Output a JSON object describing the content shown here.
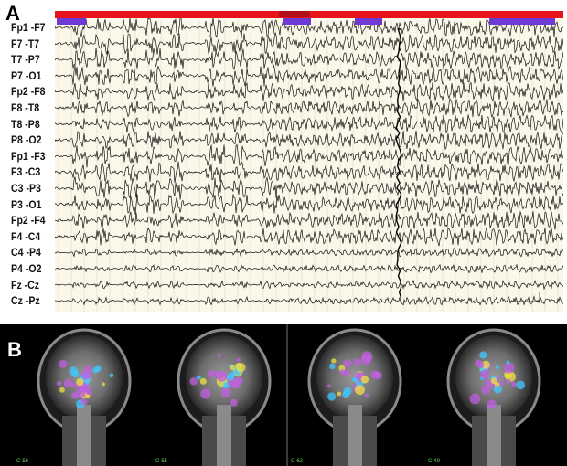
{
  "panel_a": {
    "label": "A",
    "channels": [
      "Fp1 -F7",
      "F7 -T7",
      "T7 -P7",
      "P7 -O1",
      "Fp2 -F8",
      "F8 -T8",
      "T8 -P8",
      "P8 -O2",
      "Fp1 -F3",
      "F3 -C3",
      "C3 -P3",
      "P3 -O1",
      "Fp2 -F4",
      "F4 -C4",
      "C4 -P4",
      "P4 -O2",
      "Fz -Cz",
      "Cz -Pz"
    ],
    "event_bar_color": "#e8141c",
    "marker_color": "#6d3ad6",
    "trace_color": "#111111",
    "background_color": "#fbf8ea"
  },
  "panel_b": {
    "label": "B",
    "background_color": "#000000",
    "overlay_colors": [
      "#c060e0",
      "#40c8ff",
      "#f0e040"
    ],
    "slices": [
      "C-56",
      "C-55",
      "C-62",
      "C-49"
    ]
  }
}
